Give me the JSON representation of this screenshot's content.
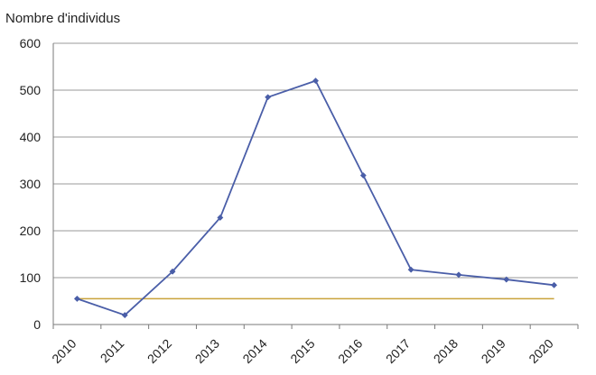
{
  "chart_data": {
    "type": "line",
    "title": "",
    "ylabel": "Nombre d'individus",
    "xlabel": "",
    "x": [
      "2010",
      "2011",
      "2012",
      "2013",
      "2014",
      "2015",
      "2016",
      "2017",
      "2018",
      "2019",
      "2020"
    ],
    "ylim": [
      0,
      600
    ],
    "yticks": [
      0,
      100,
      200,
      300,
      400,
      500,
      600
    ],
    "grid": true,
    "legend": "none",
    "series": [
      {
        "values": [
          55,
          20,
          113,
          228,
          485,
          520,
          318,
          117,
          106,
          96,
          84
        ],
        "color": "#4a5ea8",
        "marker": "diamond"
      }
    ],
    "reference_line": {
      "value": 55,
      "color": "#c9a23a"
    },
    "colors": {
      "grid": "#9a9a9a",
      "axis": "#7a7a7a",
      "text": "#222222"
    }
  }
}
